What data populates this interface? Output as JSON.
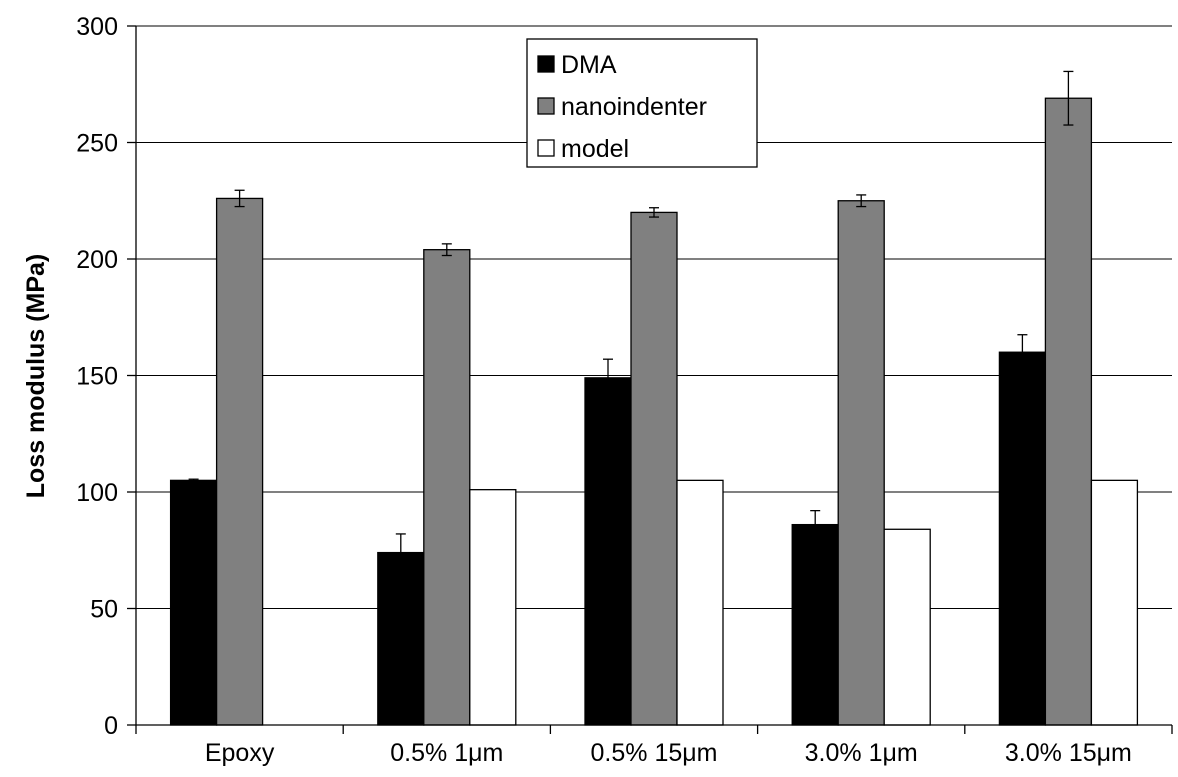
{
  "chart_data": {
    "type": "bar",
    "title": "",
    "xlabel": "",
    "ylabel": "Loss modulus (MPa)",
    "ylim": [
      0,
      300
    ],
    "yticks": [
      0,
      50,
      100,
      150,
      200,
      250,
      300
    ],
    "ytick_labels": [
      "0",
      "50",
      "100",
      "150",
      "200",
      "250",
      "300"
    ],
    "grid": true,
    "legend_position": "top-center",
    "categories": [
      "Epoxy",
      "0.5% 1μm",
      "0.5% 15μm",
      "3.0% 1μm",
      "3.0% 15μm"
    ],
    "series": [
      {
        "name": "DMA",
        "color": "#000000",
        "values": [
          105,
          74,
          149,
          86,
          160
        ],
        "errors": [
          0.5,
          8,
          8,
          6,
          7.5
        ]
      },
      {
        "name": "nanoindenter",
        "color": "#808080",
        "values": [
          226,
          204,
          220,
          225,
          269
        ],
        "errors": [
          3.5,
          2.5,
          2,
          2.5,
          11.5
        ]
      },
      {
        "name": "model",
        "color": "#ffffff",
        "values": [
          null,
          101,
          105,
          84,
          105
        ],
        "errors": [
          null,
          null,
          null,
          null,
          null
        ]
      }
    ]
  }
}
